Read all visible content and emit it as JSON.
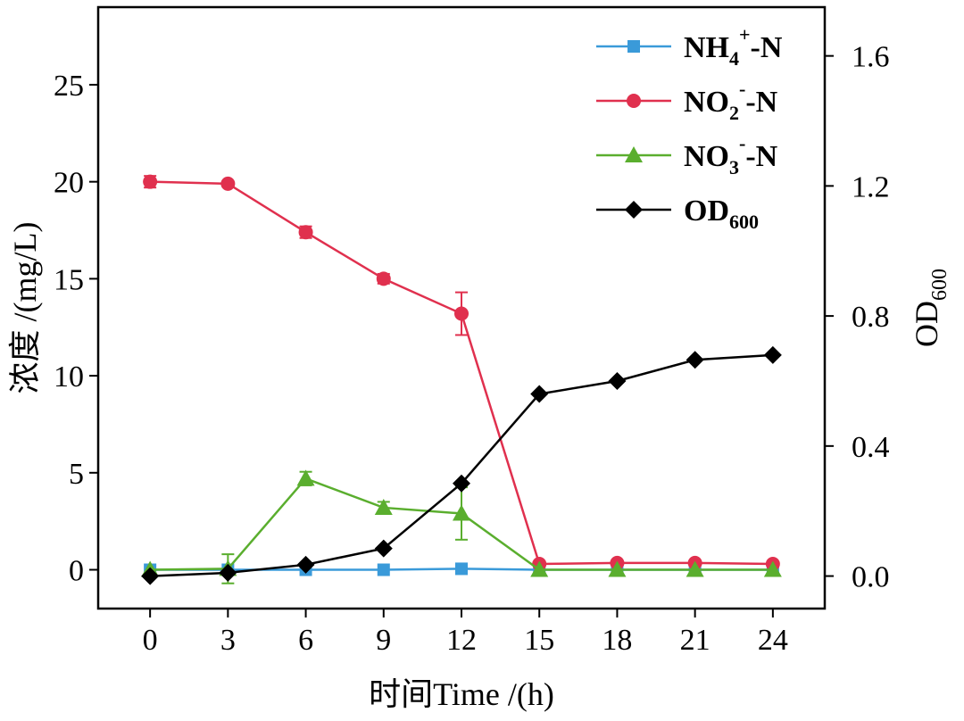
{
  "chart_data": {
    "type": "line",
    "xlabel": "时间Time /(h)",
    "ylabel": "浓度 /(mg/L)",
    "y2label_base": "OD",
    "y2label_sub": "600",
    "xlim": [
      -2,
      26
    ],
    "ylim": [
      -2,
      29
    ],
    "y2lim": [
      -0.1,
      1.75
    ],
    "x_ticks": [
      0,
      3,
      6,
      9,
      12,
      15,
      18,
      21,
      24
    ],
    "y_ticks": [
      0,
      5,
      10,
      15,
      20,
      25
    ],
    "y2_ticks": [
      0.0,
      0.4,
      0.8,
      1.2,
      1.6
    ],
    "y2_tick_labels": [
      "0.0",
      "0.4",
      "0.8",
      "1.2",
      "1.6"
    ],
    "x": [
      0,
      3,
      6,
      9,
      12,
      15,
      18,
      21,
      24
    ],
    "series": [
      {
        "name_base": "NH",
        "name_sub": "4",
        "name_sup": "+",
        "name_tail": "-N",
        "axis": "left",
        "marker": "square",
        "color": "#3a9ad9",
        "values": [
          0.0,
          0.0,
          0.0,
          0.0,
          0.05,
          0.0,
          0.0,
          0.0,
          0.0
        ],
        "errors": [
          0,
          0,
          0,
          0,
          0,
          0,
          0,
          0,
          0
        ]
      },
      {
        "name_base": "NO",
        "name_sub": "2",
        "name_sup": "-",
        "name_tail": "-N",
        "axis": "left",
        "marker": "circle",
        "color": "#e0304e",
        "values": [
          20.0,
          19.9,
          17.4,
          15.0,
          13.2,
          0.3,
          0.35,
          0.35,
          0.3
        ],
        "errors": [
          0.3,
          0,
          0.3,
          0.25,
          1.1,
          0,
          0,
          0,
          0
        ]
      },
      {
        "name_base": "NO",
        "name_sub": "3",
        "name_sup": "-",
        "name_tail": "-N",
        "axis": "left",
        "marker": "triangle",
        "color": "#5aae2e",
        "values": [
          0.0,
          0.05,
          4.7,
          3.2,
          2.9,
          0.0,
          0.0,
          0.0,
          0.0
        ],
        "errors": [
          0,
          0.75,
          0.35,
          0.3,
          1.35,
          0,
          0,
          0,
          0
        ]
      },
      {
        "name_base": "OD",
        "name_sub": "600",
        "name_sup": "",
        "name_tail": "",
        "axis": "right",
        "marker": "diamond",
        "color": "#000000",
        "values": [
          0.0,
          0.01,
          0.035,
          0.085,
          0.285,
          0.56,
          0.6,
          0.665,
          0.68
        ],
        "errors": [
          0,
          0,
          0,
          0,
          0,
          0,
          0,
          0,
          0
        ]
      }
    ],
    "legend_position": "top-right",
    "grid": false
  }
}
